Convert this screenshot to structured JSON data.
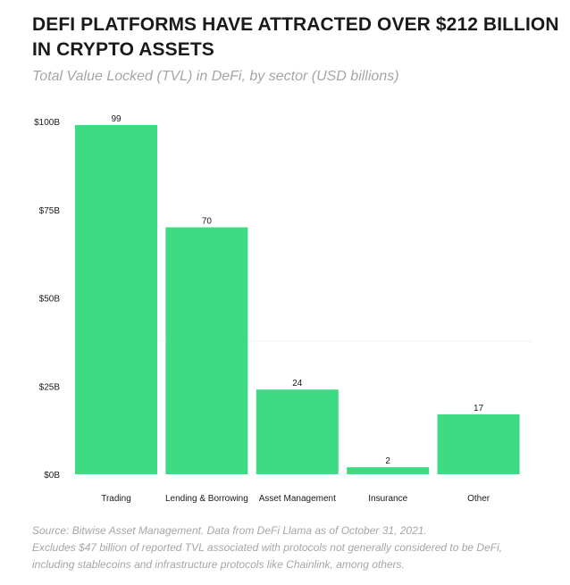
{
  "title_line1": "DEFI PLATFORMS HAVE ATTRACTED OVER $212 BILLION",
  "title_line2": "IN CRYPTO ASSETS",
  "subtitle": "Total Value Locked (TVL) in DeFi, by sector (USD billions)",
  "source_line1": "Source: Bitwise Asset Management. Data from DeFi Llama as of October 31, 2021.",
  "source_line2": "Excludes $47 billion of reported TVL associated with protocols not generally considered to be DeFi,",
  "source_line3": "including stablecoins and infrastructure protocols like Chainlink, among others.",
  "colors": {
    "bar": "#3ddc84",
    "text": "#1a1a1a",
    "muted": "#a6a6a6"
  },
  "chart_data": {
    "type": "bar",
    "categories": [
      "Trading",
      "Lending & Borrowing",
      "Asset Management",
      "Insurance",
      "Other"
    ],
    "values": [
      99,
      70,
      24,
      2,
      17
    ],
    "ylim": [
      0,
      100
    ],
    "yticks": [
      0,
      25,
      50,
      75,
      100
    ],
    "ytick_labels": [
      "$0B",
      "$25B",
      "$50B",
      "$75B",
      "$100B"
    ],
    "grid": false,
    "legend": "none"
  }
}
